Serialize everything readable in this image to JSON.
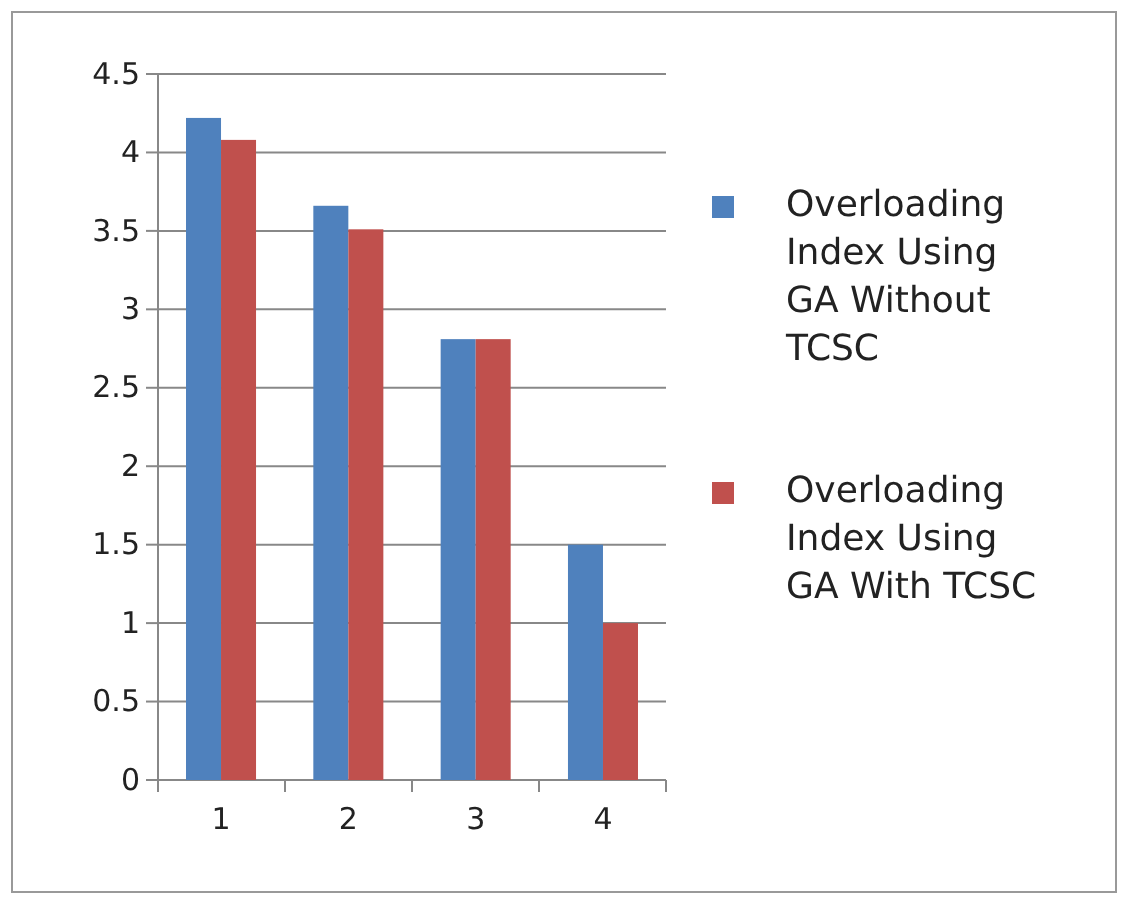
{
  "chart_data": {
    "type": "bar",
    "categories": [
      "1",
      "2",
      "3",
      "4"
    ],
    "series": [
      {
        "name": "Overloading Index Using GA Without TCSC",
        "color": "#4f81bd",
        "values": [
          4.22,
          3.66,
          2.81,
          1.5
        ]
      },
      {
        "name": "Overloading Index Using GA With TCSC",
        "color": "#c0504d",
        "values": [
          4.08,
          3.51,
          2.81,
          1.0
        ]
      }
    ],
    "ylim": [
      0,
      4.5
    ],
    "yticks": [
      0,
      0.5,
      1,
      1.5,
      2,
      2.5,
      3,
      3.5,
      4,
      4.5
    ],
    "grid": "y",
    "legend": "right"
  }
}
